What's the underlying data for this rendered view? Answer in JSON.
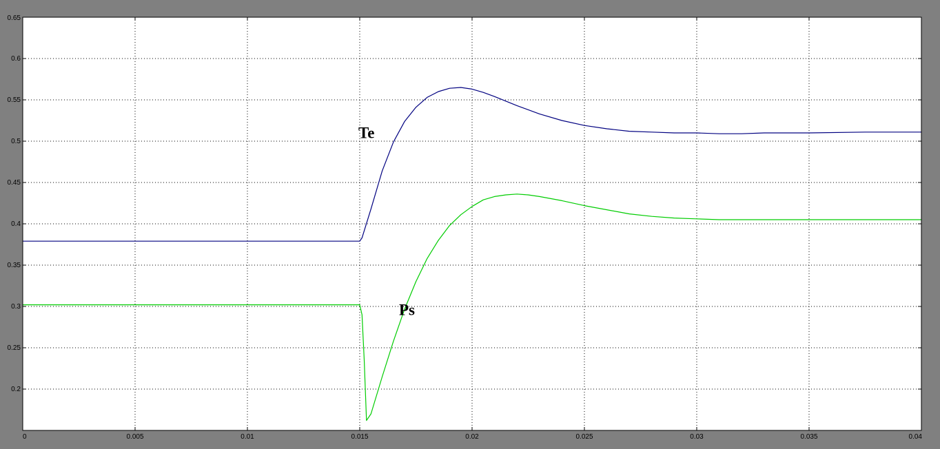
{
  "colors": {
    "figure_background": "#808080",
    "axes_background": "#ffffff",
    "grid": "#000000",
    "te_line": "#000080",
    "ps_line": "#00cc00"
  },
  "chart_data": {
    "type": "line",
    "title": "",
    "xlabel": "",
    "ylabel": "",
    "xlim": [
      0,
      0.04
    ],
    "ylim": [
      0.15,
      0.65
    ],
    "grid": true,
    "x_ticks": [
      0,
      0.005,
      0.01,
      0.015,
      0.02,
      0.025,
      0.03,
      0.035,
      0.04
    ],
    "x_tick_labels": [
      "0",
      "0.005",
      "0.01",
      "0.015",
      "0.02",
      "0.025",
      "0.03",
      "0.035",
      "0.04"
    ],
    "y_ticks": [
      0.2,
      0.25,
      0.3,
      0.35,
      0.4,
      0.45,
      0.5,
      0.55,
      0.6,
      0.65
    ],
    "y_tick_labels": [
      "0.2",
      "0.25",
      "0.3",
      "0.35",
      "0.4",
      "0.45",
      "0.5",
      "0.55",
      "0.6",
      "0.65"
    ],
    "series": [
      {
        "name": "Te",
        "color": "#000080",
        "label_at": [
          0.0153,
          0.508
        ],
        "points": [
          [
            0,
            0.379
          ],
          [
            0.015,
            0.379
          ],
          [
            0.0151,
            0.383
          ],
          [
            0.0155,
            0.418
          ],
          [
            0.016,
            0.464
          ],
          [
            0.0165,
            0.499
          ],
          [
            0.017,
            0.524
          ],
          [
            0.0175,
            0.541
          ],
          [
            0.018,
            0.553
          ],
          [
            0.0185,
            0.56
          ],
          [
            0.019,
            0.564
          ],
          [
            0.0195,
            0.565
          ],
          [
            0.02,
            0.563
          ],
          [
            0.0205,
            0.559
          ],
          [
            0.021,
            0.554
          ],
          [
            0.022,
            0.543
          ],
          [
            0.023,
            0.533
          ],
          [
            0.024,
            0.525
          ],
          [
            0.025,
            0.519
          ],
          [
            0.026,
            0.515
          ],
          [
            0.027,
            0.512
          ],
          [
            0.028,
            0.511
          ],
          [
            0.029,
            0.51
          ],
          [
            0.03,
            0.51
          ],
          [
            0.031,
            0.509
          ],
          [
            0.032,
            0.509
          ],
          [
            0.033,
            0.51
          ],
          [
            0.035,
            0.51
          ],
          [
            0.0375,
            0.511
          ],
          [
            0.04,
            0.511
          ]
        ]
      },
      {
        "name": "Ps",
        "color": "#00cc00",
        "label_at": [
          0.0171,
          0.294
        ],
        "points": [
          [
            0,
            0.302
          ],
          [
            0.015,
            0.302
          ],
          [
            0.0151,
            0.29
          ],
          [
            0.0152,
            0.235
          ],
          [
            0.0153,
            0.162
          ],
          [
            0.0155,
            0.17
          ],
          [
            0.016,
            0.215
          ],
          [
            0.0165,
            0.258
          ],
          [
            0.017,
            0.297
          ],
          [
            0.0175,
            0.33
          ],
          [
            0.018,
            0.358
          ],
          [
            0.0185,
            0.38
          ],
          [
            0.019,
            0.398
          ],
          [
            0.0195,
            0.411
          ],
          [
            0.02,
            0.421
          ],
          [
            0.0205,
            0.429
          ],
          [
            0.021,
            0.433
          ],
          [
            0.0215,
            0.435
          ],
          [
            0.022,
            0.436
          ],
          [
            0.0225,
            0.435
          ],
          [
            0.023,
            0.433
          ],
          [
            0.024,
            0.428
          ],
          [
            0.025,
            0.422
          ],
          [
            0.026,
            0.417
          ],
          [
            0.027,
            0.412
          ],
          [
            0.028,
            0.409
          ],
          [
            0.029,
            0.407
          ],
          [
            0.03,
            0.406
          ],
          [
            0.031,
            0.405
          ],
          [
            0.032,
            0.405
          ],
          [
            0.033,
            0.405
          ],
          [
            0.035,
            0.405
          ],
          [
            0.0375,
            0.405
          ],
          [
            0.04,
            0.405
          ]
        ]
      }
    ]
  }
}
